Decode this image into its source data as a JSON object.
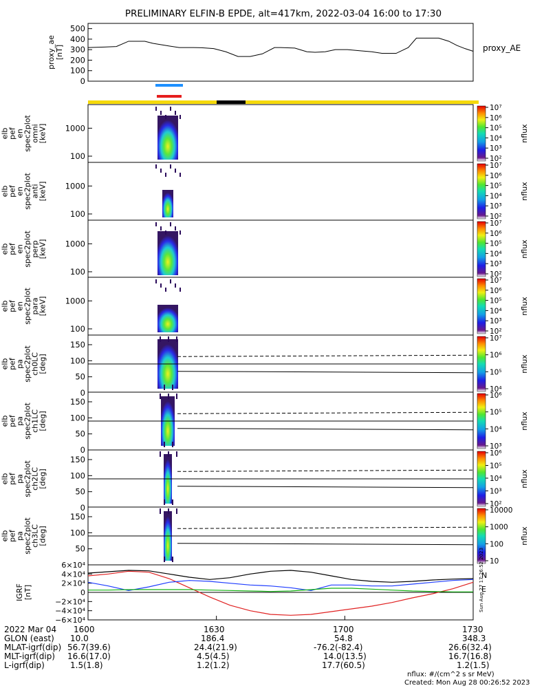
{
  "title": "PRELIMINARY ELFIN-B EPDE, alt=417km, 2022-03-04 16:00 to 17:30",
  "colors": {
    "zone_bar": "#f5d90a",
    "zone_black": "#000000",
    "science_blue": "#1e90ff",
    "science_red": "#e61e1e",
    "bx": "#1e3cff",
    "by": "#10b010",
    "bz": "#e02020",
    "bt": "#000000"
  },
  "chart_data": [
    {
      "type": "line",
      "panel": "proxy_ae",
      "ylabel_lines": [
        "proxy_ae",
        "[nT]"
      ],
      "series_label": "proxy_AE",
      "ylim": [
        0,
        550
      ],
      "yticks": [
        "0",
        "100",
        "200",
        "300",
        "400",
        "500"
      ],
      "x_minutes": [
        0,
        8,
        14,
        20,
        28,
        32,
        40,
        45,
        52,
        56,
        62,
        68,
        74,
        80,
        86,
        92,
        95,
        102,
        108,
        112,
        117,
        122,
        128,
        134,
        140,
        145,
        152,
        158,
        162,
        168,
        173,
        178,
        182,
        186,
        190
      ],
      "values": [
        320,
        325,
        330,
        380,
        380,
        360,
        335,
        320,
        320,
        318,
        310,
        280,
        235,
        235,
        260,
        320,
        320,
        315,
        280,
        275,
        280,
        300,
        300,
        290,
        280,
        265,
        265,
        320,
        410,
        410,
        410,
        380,
        340,
        310,
        285
      ]
    },
    {
      "type": "heatmap",
      "panel": "omni",
      "ylabel_lines": [
        "elb",
        "pef",
        "en",
        "spec2plot",
        "omni",
        "[keV]"
      ],
      "yscale": "log",
      "yticks": [
        "100",
        "1000"
      ],
      "colorbar_label": "nflux",
      "colorbar_ticks": [
        "10²",
        "10³",
        "10⁴",
        "10⁵",
        "10⁶",
        "10⁷"
      ]
    },
    {
      "type": "heatmap",
      "panel": "anti",
      "ylabel_lines": [
        "elb",
        "pef",
        "en",
        "spec2plot",
        "anti",
        "[keV]"
      ],
      "yscale": "log",
      "yticks": [
        "100",
        "1000"
      ],
      "colorbar_label": "nflux",
      "colorbar_ticks": [
        "10²",
        "10³",
        "10⁴",
        "10⁵",
        "10⁶",
        "10⁷"
      ]
    },
    {
      "type": "heatmap",
      "panel": "perp",
      "ylabel_lines": [
        "elb",
        "pef",
        "en",
        "spec2plot",
        "perp",
        "[keV]"
      ],
      "yscale": "log",
      "yticks": [
        "100",
        "1000"
      ],
      "colorbar_label": "nflux",
      "colorbar_ticks": [
        "10²",
        "10³",
        "10⁴",
        "10⁵",
        "10⁶",
        "10⁷"
      ]
    },
    {
      "type": "heatmap",
      "panel": "para",
      "ylabel_lines": [
        "elb",
        "pef",
        "en",
        "spec2plot",
        "para",
        "[keV]"
      ],
      "yscale": "log",
      "yticks": [
        "100",
        "1000"
      ],
      "colorbar_label": "nflux",
      "colorbar_ticks": [
        "10²",
        "10³",
        "10⁴",
        "10⁵",
        "10⁶",
        "10⁷"
      ]
    },
    {
      "type": "heatmap",
      "panel": "ch0LC",
      "ylabel_lines": [
        "elb",
        "pef",
        "pa",
        "spec2plot",
        "ch0LC",
        "[deg]"
      ],
      "yticks": [
        "0",
        "50",
        "100",
        "150"
      ],
      "colorbar_label": "nflux",
      "colorbar_ticks": [
        "10⁴",
        "10⁵",
        "10⁶",
        "10⁷"
      ]
    },
    {
      "type": "heatmap",
      "panel": "ch1LC",
      "ylabel_lines": [
        "elb",
        "pef",
        "pa",
        "spec2plot",
        "ch1LC",
        "[deg]"
      ],
      "yticks": [
        "0",
        "50",
        "100",
        "150"
      ],
      "colorbar_label": "nflux",
      "colorbar_ticks": [
        "10³",
        "10⁴",
        "10⁵",
        "10⁶"
      ]
    },
    {
      "type": "heatmap",
      "panel": "ch2LC",
      "ylabel_lines": [
        "elb",
        "pef",
        "pa",
        "spec2plot",
        "ch2LC",
        "[deg]"
      ],
      "yticks": [
        "0",
        "50",
        "100",
        "150"
      ],
      "colorbar_label": "nflux",
      "colorbar_ticks": [
        "10²",
        "10³",
        "10⁴",
        "10⁵",
        "10⁶"
      ]
    },
    {
      "type": "heatmap",
      "panel": "ch3LC",
      "ylabel_lines": [
        "elb",
        "pef",
        "pa",
        "spec2plot",
        "ch3LC",
        "[deg]"
      ],
      "yticks": [
        "50",
        "100",
        "150"
      ],
      "colorbar_label": "nflux",
      "colorbar_ticks": [
        "10",
        "100",
        "1000",
        "10000"
      ]
    },
    {
      "type": "line",
      "panel": "igrf",
      "ylabel_lines": [
        "IGRF",
        "[nT]"
      ],
      "ylim": [
        -60000,
        60000
      ],
      "yticks": [
        "−6×10⁴",
        "−4×10⁴",
        "−2×10⁴",
        "0",
        "2×10⁴",
        "4×10⁴",
        "6×10⁴"
      ],
      "legend": [
        "N",
        "E"
      ],
      "x_minutes": [
        0,
        10,
        20,
        30,
        40,
        50,
        60,
        70,
        80,
        90,
        100,
        110,
        120,
        130,
        140,
        150,
        160,
        170,
        180,
        190
      ],
      "series": [
        {
          "values": [
            42000,
            45000,
            48000,
            47000,
            40000,
            33000,
            28000,
            32000,
            40000,
            46000,
            48000,
            44000,
            36000,
            28000,
            24000,
            22000,
            24000,
            27000,
            29000,
            30000
          ]
        },
        {
          "values": [
            36000,
            40000,
            46000,
            44000,
            30000,
            10000,
            -10000,
            -28000,
            -40000,
            -48000,
            -50000,
            -48000,
            -42000,
            -36000,
            -30000,
            -22000,
            -12000,
            -3000,
            8000,
            22000
          ]
        },
        {
          "values": [
            22000,
            14000,
            4000,
            12000,
            22000,
            26000,
            24000,
            20000,
            16000,
            14000,
            10000,
            4000,
            16000,
            16000,
            14000,
            14000,
            18000,
            22000,
            26000,
            28000
          ]
        },
        {
          "values": [
            5000,
            5000,
            6000,
            6000,
            6000,
            6000,
            5000,
            4000,
            3000,
            2000,
            3000,
            6000,
            9000,
            9000,
            7000,
            5000,
            3000,
            2000,
            1000,
            1000
          ]
        }
      ]
    }
  ],
  "footer": {
    "rows": [
      {
        "label": "2022 Mar 04",
        "v1": "1600",
        "v2": "1630",
        "v3": "1700",
        "v4": "1730"
      },
      {
        "label": "GLON (east)",
        "v1": "10.0",
        "v2": "186.4",
        "v3": "54.8",
        "v4": "348.3"
      },
      {
        "label": "MLAT-igrf(dip)",
        "v1": "56.7(39.6)",
        "v2": "24.4(21.9)",
        "v3": "-76.2(-82.4)",
        "v4": "26.6(32.4)"
      },
      {
        "label": "MLT-igrf(dip)",
        "v1": "16.6(17.0)",
        "v2": "4.5(4.5)",
        "v3": "14.0(13.5)",
        "v4": "16.7(16.8)"
      },
      {
        "label": "L-igrf(dip)",
        "v1": "1.5(1.8)",
        "v2": "1.2(1.2)",
        "v3": "17.7(60.5)",
        "v4": "1.2(1.5)"
      }
    ],
    "units_note": "nflux: #/(cm^2 s sr MeV)",
    "created": "Created: Mon Aug 28 00:26:52 2023",
    "side_stamp": "Sun Aug 27 17:26:52 2023"
  }
}
